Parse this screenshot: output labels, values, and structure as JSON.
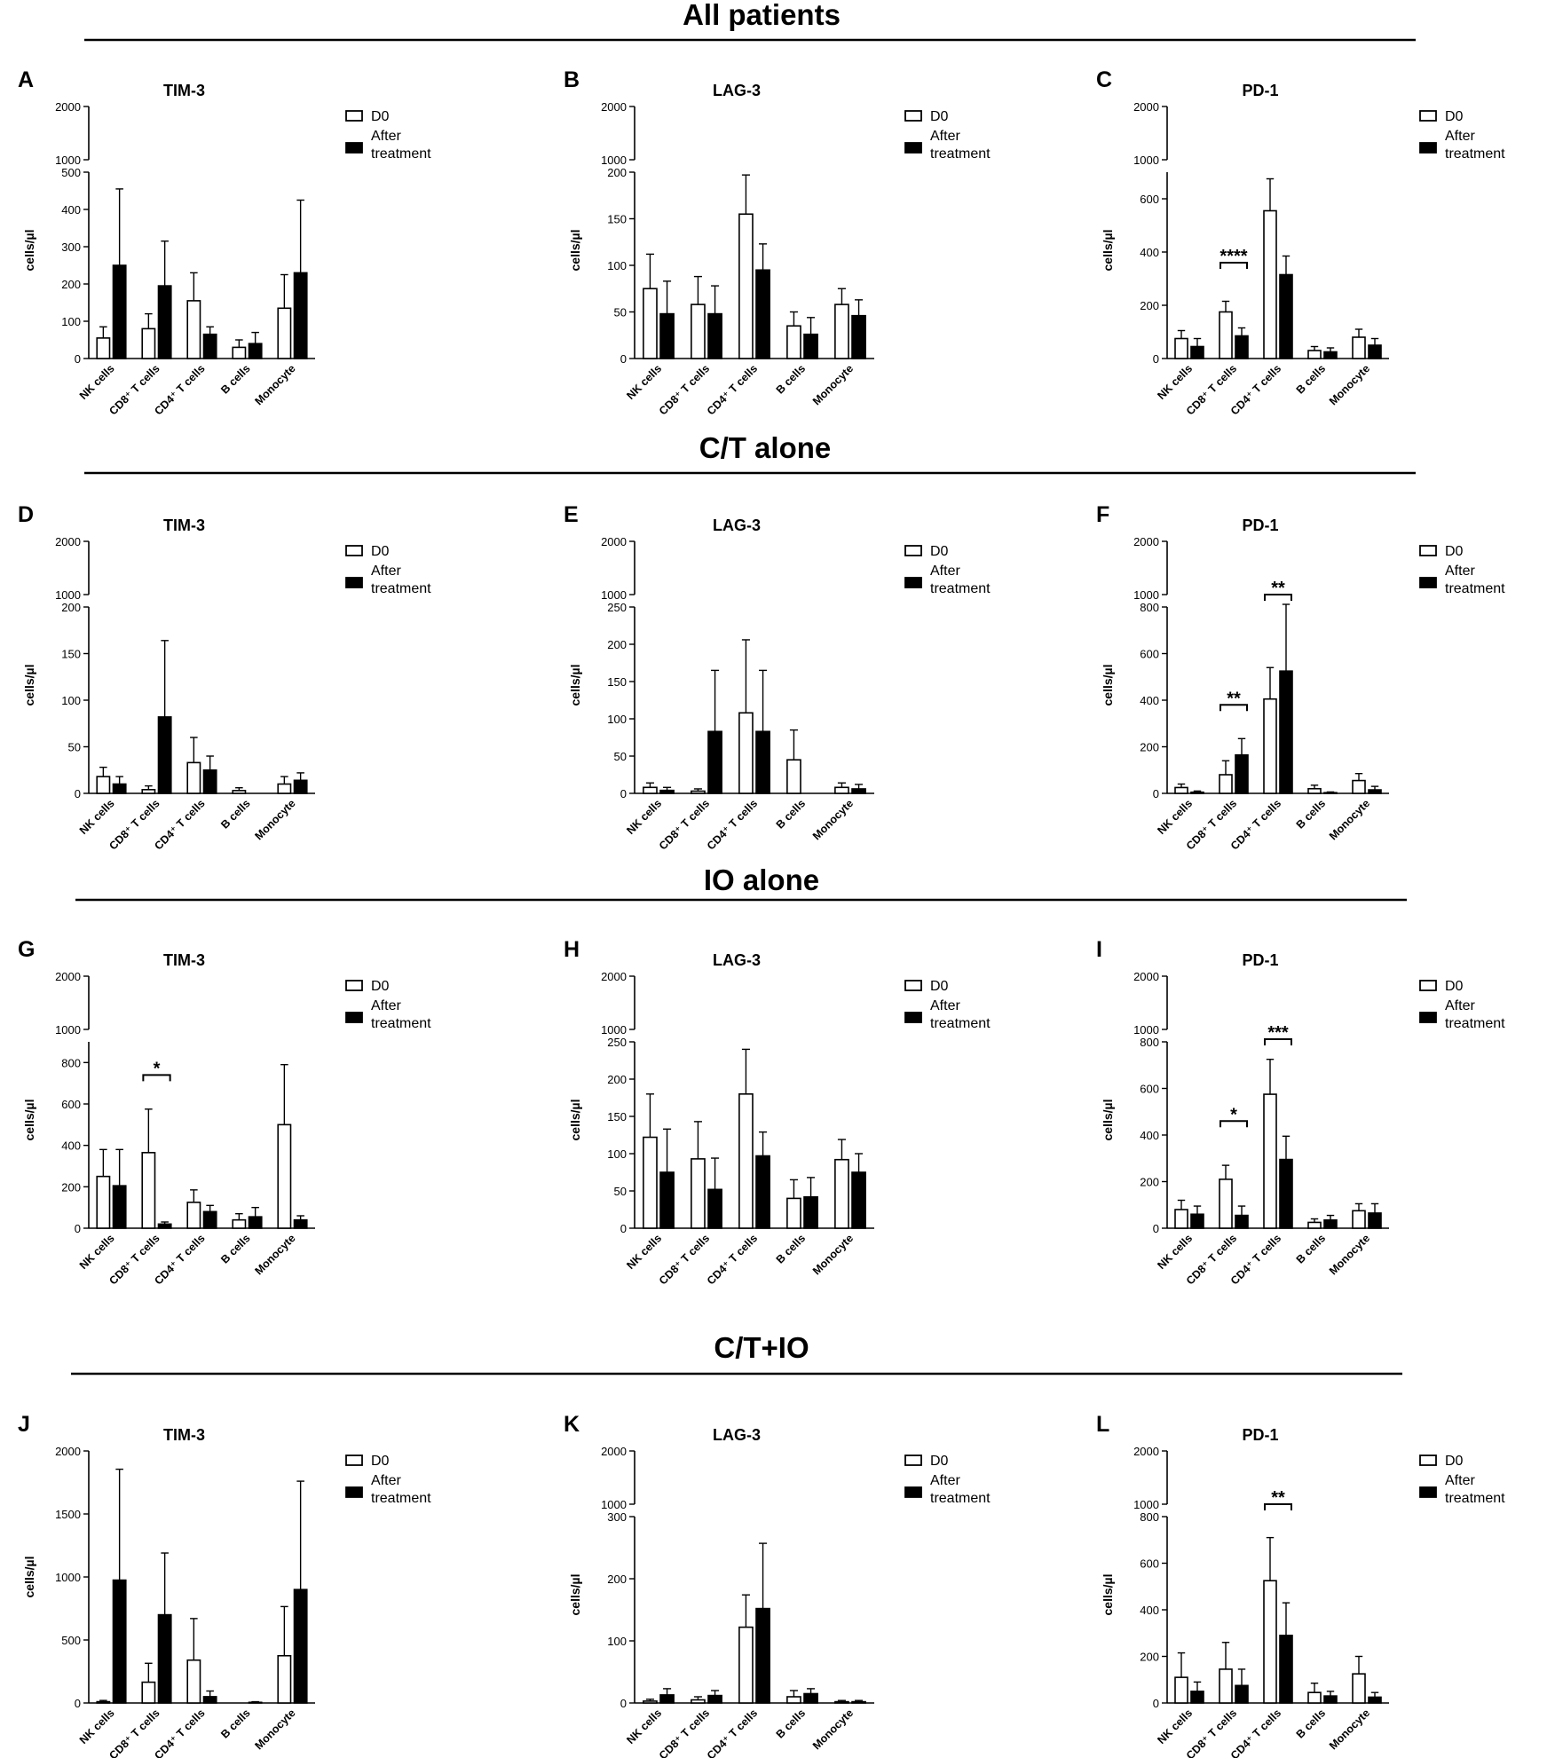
{
  "colors": {
    "d0_fill": "#ffffff",
    "after_fill": "#000000",
    "stroke": "#000000"
  },
  "sections": [
    {
      "title": "All patients"
    },
    {
      "title": "C/T alone"
    },
    {
      "title": "IO alone"
    },
    {
      "title": "C/T+IO"
    }
  ],
  "chart_data": [
    {
      "panel": "A",
      "title": "TIM-3",
      "type": "bar",
      "section": 0,
      "col": 0,
      "categories": [
        "NK cells",
        "CD8⁺ T cells",
        "CD4⁺ T cells",
        "B cells",
        "Monocyte"
      ],
      "ylabel": "cells/µl",
      "axis_break": {
        "lower_max": 500,
        "lower_ticks": [
          0,
          100,
          200,
          300,
          400,
          500
        ],
        "upper_ticks": [
          1000,
          2000
        ]
      },
      "series": [
        {
          "name": "D0",
          "values": [
            55,
            80,
            155,
            30,
            135
          ],
          "errors": [
            30,
            40,
            75,
            20,
            90
          ]
        },
        {
          "name": "After treatment",
          "values": [
            250,
            195,
            65,
            40,
            230
          ],
          "errors": [
            205,
            120,
            20,
            30,
            195
          ]
        }
      ],
      "significance": []
    },
    {
      "panel": "B",
      "title": "LAG-3",
      "type": "bar",
      "section": 0,
      "col": 1,
      "categories": [
        "NK cells",
        "CD8⁺ T cells",
        "CD4⁺ T cells",
        "B cells",
        "Monocyte"
      ],
      "ylabel": "cells/µl",
      "axis_break": {
        "lower_max": 200,
        "lower_ticks": [
          0,
          50,
          100,
          150,
          200
        ],
        "upper_ticks": [
          1000,
          2000
        ]
      },
      "series": [
        {
          "name": "D0",
          "values": [
            75,
            58,
            155,
            35,
            58
          ],
          "errors": [
            37,
            30,
            42,
            15,
            17
          ]
        },
        {
          "name": "After treatment",
          "values": [
            48,
            48,
            95,
            26,
            46
          ],
          "errors": [
            35,
            30,
            28,
            18,
            17
          ]
        }
      ],
      "significance": []
    },
    {
      "panel": "C",
      "title": "PD-1",
      "type": "bar",
      "section": 0,
      "col": 2,
      "categories": [
        "NK cells",
        "CD8⁺ T cells",
        "CD4⁺ T cells",
        "B cells",
        "Monocyte"
      ],
      "ylabel": "cells/µl",
      "axis_break": {
        "lower_max": 700,
        "lower_ticks": [
          0,
          200,
          400,
          600
        ],
        "upper_ticks": [
          1000,
          2000
        ]
      },
      "series": [
        {
          "name": "D0",
          "values": [
            75,
            175,
            555,
            30,
            80
          ],
          "errors": [
            30,
            40,
            120,
            15,
            30
          ]
        },
        {
          "name": "After treatment",
          "values": [
            45,
            85,
            315,
            25,
            50
          ],
          "errors": [
            30,
            30,
            70,
            15,
            25
          ]
        }
      ],
      "significance": [
        {
          "category": 1,
          "label": "****",
          "y": 360
        }
      ]
    },
    {
      "panel": "D",
      "title": "TIM-3",
      "type": "bar",
      "section": 1,
      "col": 0,
      "categories": [
        "NK cells",
        "CD8⁺ T cells",
        "CD4⁺ T cells",
        "B cells",
        "Monocyte"
      ],
      "ylabel": "cells/µl",
      "axis_break": {
        "lower_max": 200,
        "lower_ticks": [
          0,
          50,
          100,
          150,
          200
        ],
        "upper_ticks": [
          1000,
          2000
        ]
      },
      "series": [
        {
          "name": "D0",
          "values": [
            18,
            4,
            33,
            3,
            10
          ],
          "errors": [
            10,
            4,
            27,
            3,
            8
          ]
        },
        {
          "name": "After treatment",
          "values": [
            10,
            82,
            25,
            0,
            14
          ],
          "errors": [
            8,
            82,
            15,
            0,
            8
          ]
        }
      ],
      "significance": []
    },
    {
      "panel": "E",
      "title": "LAG-3",
      "type": "bar",
      "section": 1,
      "col": 1,
      "categories": [
        "NK cells",
        "CD8⁺ T cells",
        "CD4⁺ T cells",
        "B cells",
        "Monocyte"
      ],
      "ylabel": "cells/µl",
      "axis_break": {
        "lower_max": 250,
        "lower_ticks": [
          0,
          50,
          100,
          150,
          200,
          250
        ],
        "upper_ticks": [
          1000,
          2000
        ]
      },
      "series": [
        {
          "name": "D0",
          "values": [
            8,
            3,
            108,
            45,
            8
          ],
          "errors": [
            6,
            3,
            98,
            40,
            6
          ]
        },
        {
          "name": "After treatment",
          "values": [
            4,
            83,
            83,
            0,
            6
          ],
          "errors": [
            4,
            82,
            82,
            0,
            6
          ]
        }
      ],
      "significance": []
    },
    {
      "panel": "F",
      "title": "PD-1",
      "type": "bar",
      "section": 1,
      "col": 2,
      "categories": [
        "NK cells",
        "CD8⁺ T cells",
        "CD4⁺ T cells",
        "B cells",
        "Monocyte"
      ],
      "ylabel": "cells/µl",
      "axis_break": {
        "lower_max": 800,
        "lower_ticks": [
          0,
          200,
          400,
          600,
          800
        ],
        "upper_ticks": [
          1000,
          2000
        ]
      },
      "series": [
        {
          "name": "D0",
          "values": [
            25,
            80,
            405,
            20,
            55
          ],
          "errors": [
            15,
            60,
            135,
            15,
            30
          ]
        },
        {
          "name": "After treatment",
          "values": [
            5,
            165,
            525,
            3,
            15
          ],
          "errors": [
            5,
            70,
            285,
            3,
            15
          ]
        }
      ],
      "significance": [
        {
          "category": 1,
          "label": "**",
          "y": 380
        },
        {
          "category": 2,
          "label": "**",
          "y": 1000
        }
      ]
    },
    {
      "panel": "G",
      "title": "TIM-3",
      "type": "bar",
      "section": 2,
      "col": 0,
      "categories": [
        "NK cells",
        "CD8⁺ T cells",
        "CD4⁺ T cells",
        "B cells",
        "Monocyte"
      ],
      "ylabel": "cells/µl",
      "axis_break": {
        "lower_max": 900,
        "lower_ticks": [
          0,
          200,
          400,
          600,
          800
        ],
        "upper_ticks": [
          1000,
          2000
        ]
      },
      "series": [
        {
          "name": "D0",
          "values": [
            250,
            365,
            125,
            40,
            500
          ],
          "errors": [
            130,
            210,
            60,
            30,
            290
          ]
        },
        {
          "name": "After treatment",
          "values": [
            205,
            20,
            80,
            55,
            40
          ],
          "errors": [
            175,
            10,
            30,
            45,
            20
          ]
        }
      ],
      "significance": [
        {
          "category": 1,
          "label": "*",
          "y": 740
        }
      ]
    },
    {
      "panel": "H",
      "title": "LAG-3",
      "type": "bar",
      "section": 2,
      "col": 1,
      "categories": [
        "NK cells",
        "CD8⁺ T cells",
        "CD4⁺ T cells",
        "B cells",
        "Monocyte"
      ],
      "ylabel": "cells/µl",
      "axis_break": {
        "lower_max": 250,
        "lower_ticks": [
          0,
          50,
          100,
          150,
          200,
          250
        ],
        "upper_ticks": [
          1000,
          2000
        ]
      },
      "series": [
        {
          "name": "D0",
          "values": [
            122,
            93,
            180,
            40,
            92
          ],
          "errors": [
            58,
            50,
            60,
            25,
            27
          ]
        },
        {
          "name": "After treatment",
          "values": [
            75,
            52,
            97,
            42,
            75
          ],
          "errors": [
            58,
            42,
            32,
            26,
            25
          ]
        }
      ],
      "significance": []
    },
    {
      "panel": "I",
      "title": "PD-1",
      "type": "bar",
      "section": 2,
      "col": 2,
      "categories": [
        "NK cells",
        "CD8⁺ T cells",
        "CD4⁺ T cells",
        "B cells",
        "Monocyte"
      ],
      "ylabel": "cells/µl",
      "axis_break": {
        "lower_max": 800,
        "lower_ticks": [
          0,
          200,
          400,
          600,
          800
        ],
        "upper_ticks": [
          1000,
          2000
        ]
      },
      "series": [
        {
          "name": "D0",
          "values": [
            80,
            210,
            575,
            25,
            75
          ],
          "errors": [
            40,
            60,
            150,
            15,
            30
          ]
        },
        {
          "name": "After treatment",
          "values": [
            60,
            55,
            295,
            35,
            65
          ],
          "errors": [
            35,
            40,
            100,
            20,
            40
          ]
        }
      ],
      "significance": [
        {
          "category": 1,
          "label": "*",
          "y": 460
        },
        {
          "category": 2,
          "label": "***",
          "y": 820
        }
      ]
    },
    {
      "panel": "J",
      "title": "TIM-3",
      "type": "bar",
      "section": 3,
      "col": 0,
      "categories": [
        "NK cells",
        "CD8⁺ T cells",
        "CD4⁺ T cells",
        "B cells",
        "Monocyte"
      ],
      "ylabel": "cells/µl",
      "axis_ticks": [
        0,
        500,
        1000,
        1500,
        2000
      ],
      "ylim": [
        0,
        2000
      ],
      "series": [
        {
          "name": "D0",
          "values": [
            10,
            165,
            340,
            0,
            375
          ],
          "errors": [
            10,
            150,
            330,
            0,
            390
          ]
        },
        {
          "name": "After treatment",
          "values": [
            975,
            700,
            50,
            5,
            900
          ],
          "errors": [
            880,
            490,
            45,
            5,
            860
          ]
        }
      ],
      "significance": []
    },
    {
      "panel": "K",
      "title": "LAG-3",
      "type": "bar",
      "section": 3,
      "col": 1,
      "categories": [
        "NK cells",
        "CD8⁺ T cells",
        "CD4⁺ T cells",
        "B cells",
        "Monocyte"
      ],
      "ylabel": "cells/µl",
      "axis_break": {
        "lower_max": 300,
        "lower_ticks": [
          0,
          100,
          200,
          300
        ],
        "upper_ticks": [
          1000,
          2000
        ]
      },
      "series": [
        {
          "name": "D0",
          "values": [
            3,
            5,
            122,
            10,
            2
          ],
          "errors": [
            3,
            5,
            52,
            10,
            2
          ]
        },
        {
          "name": "After treatment",
          "values": [
            13,
            12,
            152,
            15,
            2
          ],
          "errors": [
            10,
            8,
            105,
            8,
            2
          ]
        }
      ],
      "significance": []
    },
    {
      "panel": "L",
      "title": "PD-1",
      "type": "bar",
      "section": 3,
      "col": 2,
      "categories": [
        "NK cells",
        "CD8⁺ T cells",
        "CD4⁺ T cells",
        "B cells",
        "Monocyte"
      ],
      "ylabel": "cells/µl",
      "axis_break": {
        "lower_max": 800,
        "lower_ticks": [
          0,
          200,
          400,
          600,
          800
        ],
        "upper_ticks": [
          1000,
          2000
        ]
      },
      "series": [
        {
          "name": "D0",
          "values": [
            110,
            145,
            525,
            45,
            125
          ],
          "errors": [
            105,
            115,
            185,
            40,
            75
          ]
        },
        {
          "name": "After treatment",
          "values": [
            50,
            75,
            290,
            30,
            25
          ],
          "errors": [
            40,
            70,
            140,
            20,
            20
          ]
        }
      ],
      "significance": [
        {
          "category": 2,
          "label": "**",
          "y": 1000
        }
      ]
    }
  ],
  "legend": {
    "d0": "D0",
    "after_line1": "After",
    "after_line2": "treatment"
  }
}
